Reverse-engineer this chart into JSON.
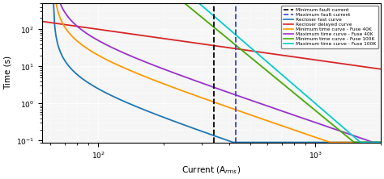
{
  "xlim": [
    55,
    2000
  ],
  "ylim": [
    0.09,
    500
  ],
  "xlabel": "Current (A$_{rms}$)",
  "ylabel": "Time (s)",
  "min_fault_current": 340,
  "max_fault_current": 430,
  "legend_entries": [
    "Minimum fault current",
    "Maximum fault current",
    "Recloser fast curve",
    "Recloser delayed curve",
    "Minimum time curve - Fuse 40K",
    "Maximum time curve - Fuse 40K",
    "Minimum time curve - Fuse 100K",
    "Maximum time curve - Fuse 100K"
  ],
  "colors": {
    "recloser_fast": "#1f77b4",
    "recloser_delayed": "#d62728",
    "fuse40k_min": "#ff9900",
    "fuse40k_max": "#9933cc",
    "fuse100k_min": "#44aa00",
    "fuse100k_max": "#00cccc"
  },
  "curves": {
    "recloser_fast": {
      "A": 0.0104,
      "B": 0.0004,
      "p": 2.0,
      "Ipickup": 56
    },
    "recloser_delayed": {
      "A": 5.95,
      "B": 0.18,
      "p": 2.0,
      "Ipickup": 56
    },
    "fuse40k_min": {
      "A": 0.0315,
      "B": 0.0,
      "p": 2.0,
      "Ipickup": 56
    },
    "fuse40k_max": {
      "A": 0.08,
      "B": 0.0,
      "p": 2.0,
      "Ipickup": 56
    },
    "fuse100k_min": {
      "A": 0.0315,
      "B": 0.0,
      "p": 2.0,
      "Ipickup": 240
    },
    "fuse100k_max": {
      "A": 0.08,
      "B": 0.0,
      "p": 2.0,
      "Ipickup": 240
    }
  }
}
